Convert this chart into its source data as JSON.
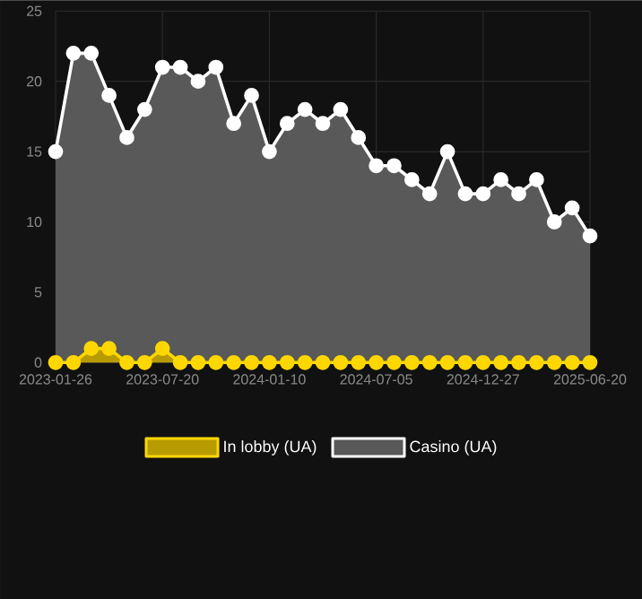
{
  "chart_data": {
    "type": "area",
    "categories": [
      "2023-01-26",
      null,
      null,
      null,
      null,
      null,
      "2023-07-20",
      null,
      null,
      null,
      null,
      null,
      "2024-01-10",
      null,
      null,
      null,
      null,
      null,
      "2024-07-05",
      null,
      null,
      null,
      null,
      null,
      "2024-12-27",
      null,
      null,
      null,
      null,
      null,
      "2025-06-20"
    ],
    "series": [
      {
        "name": "In lobby (UA)",
        "color": "#ffd700",
        "values": [
          0,
          0,
          1,
          1,
          0,
          0,
          1,
          0,
          0,
          0,
          0,
          0,
          0,
          0,
          0,
          0,
          0,
          0,
          0,
          0,
          0,
          0,
          0,
          0,
          0,
          0,
          0,
          0,
          0,
          0,
          0
        ]
      },
      {
        "name": "Casino (UA)",
        "color": "#ffffff",
        "values": [
          15,
          22,
          22,
          19,
          16,
          18,
          21,
          21,
          20,
          21,
          17,
          19,
          15,
          17,
          18,
          17,
          18,
          16,
          14,
          14,
          13,
          12,
          15,
          12,
          12,
          13,
          12,
          13,
          10,
          11,
          9
        ]
      }
    ],
    "ylim": [
      0,
      25
    ],
    "yticks": [
      0,
      5,
      10,
      15,
      20,
      25
    ],
    "grid": true,
    "legend": "bottom",
    "marker": "circle",
    "line_style": "solid"
  }
}
